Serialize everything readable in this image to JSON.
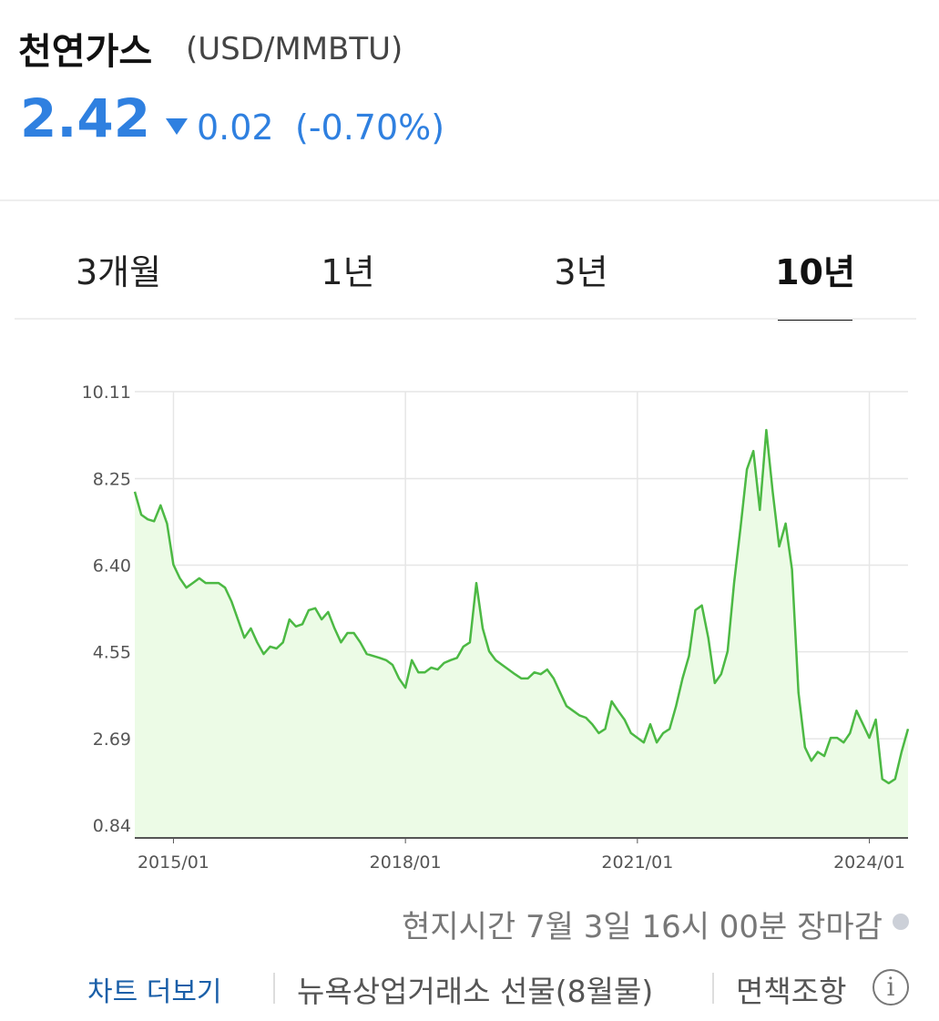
{
  "header": {
    "title": "천연가스",
    "unit": "(USD/MMBTU)",
    "price": "2.42",
    "change": "0.02",
    "change_pct": "(-0.70%)"
  },
  "tabs": {
    "items": [
      "3개월",
      "1년",
      "3년",
      "10년"
    ],
    "active": 3
  },
  "chart_data": {
    "type": "line",
    "x": [
      "2014/07",
      "2014/08",
      "2014/09",
      "2014/10",
      "2014/11",
      "2014/12",
      "2015/01",
      "2015/02",
      "2015/03",
      "2015/04",
      "2015/05",
      "2015/06",
      "2015/07",
      "2015/08",
      "2015/09",
      "2015/10",
      "2015/11",
      "2015/12",
      "2016/01",
      "2016/02",
      "2016/03",
      "2016/04",
      "2016/05",
      "2016/06",
      "2016/07",
      "2016/08",
      "2016/09",
      "2016/10",
      "2016/11",
      "2016/12",
      "2017/01",
      "2017/02",
      "2017/03",
      "2017/04",
      "2017/05",
      "2017/06",
      "2017/07",
      "2017/08",
      "2017/09",
      "2017/10",
      "2017/11",
      "2017/12",
      "2018/01",
      "2018/02",
      "2018/03",
      "2018/04",
      "2018/05",
      "2018/06",
      "2018/07",
      "2018/08",
      "2018/09",
      "2018/10",
      "2018/11",
      "2018/12",
      "2019/01",
      "2019/02",
      "2019/03",
      "2019/04",
      "2019/05",
      "2019/06",
      "2019/07",
      "2019/08",
      "2019/09",
      "2019/10",
      "2019/11",
      "2019/12",
      "2020/01",
      "2020/02",
      "2020/03",
      "2020/04",
      "2020/05",
      "2020/06",
      "2020/07",
      "2020/08",
      "2020/09",
      "2020/10",
      "2020/11",
      "2020/12",
      "2021/01",
      "2021/02",
      "2021/03",
      "2021/04",
      "2021/05",
      "2021/06",
      "2021/07",
      "2021/08",
      "2021/09",
      "2021/10",
      "2021/11",
      "2021/12",
      "2022/01",
      "2022/02",
      "2022/03",
      "2022/04",
      "2022/05",
      "2022/06",
      "2022/07",
      "2022/08",
      "2022/09",
      "2022/10",
      "2022/11",
      "2022/12",
      "2023/01",
      "2023/02",
      "2023/03",
      "2023/04",
      "2023/05",
      "2023/06",
      "2023/07",
      "2023/08",
      "2023/09",
      "2023/10",
      "2023/11",
      "2023/12",
      "2024/01",
      "2024/02",
      "2024/03",
      "2024/04",
      "2024/05",
      "2024/06",
      "2024/07"
    ],
    "series": [
      {
        "color": "#4cb944",
        "values": [
          7.97,
          7.48,
          7.38,
          7.34,
          7.68,
          7.29,
          6.41,
          6.12,
          5.92,
          6.02,
          6.12,
          6.02,
          6.02,
          6.02,
          5.92,
          5.63,
          5.24,
          4.85,
          5.05,
          4.75,
          4.5,
          4.66,
          4.62,
          4.75,
          5.24,
          5.09,
          5.14,
          5.44,
          5.48,
          5.24,
          5.4,
          5.05,
          4.75,
          4.95,
          4.95,
          4.75,
          4.5,
          4.46,
          4.42,
          4.37,
          4.27,
          3.98,
          3.78,
          4.37,
          4.11,
          4.11,
          4.21,
          4.17,
          4.31,
          4.37,
          4.42,
          4.66,
          4.75,
          6.02,
          5.05,
          4.56,
          4.37,
          4.27,
          4.17,
          4.07,
          3.98,
          3.98,
          4.11,
          4.07,
          4.17,
          3.98,
          3.68,
          3.39,
          3.29,
          3.19,
          3.14,
          3.0,
          2.81,
          2.9,
          3.49,
          3.29,
          3.1,
          2.81,
          2.71,
          2.61,
          3.0,
          2.61,
          2.81,
          2.9,
          3.39,
          3.98,
          4.46,
          5.44,
          5.54,
          4.85,
          3.88,
          4.07,
          4.56,
          6.02,
          7.19,
          8.45,
          8.84,
          7.58,
          9.29,
          7.97,
          6.8,
          7.29,
          6.31,
          3.68,
          2.51,
          2.22,
          2.41,
          2.32,
          2.71,
          2.71,
          2.61,
          2.81,
          3.29,
          3.0,
          2.71,
          3.1,
          1.83,
          1.74,
          1.83,
          2.41,
          2.9
        ]
      }
    ],
    "xlim": [
      "2014/07",
      "2024/07"
    ],
    "xticks": [
      "2015/01",
      "2018/01",
      "2021/01",
      "2024/01"
    ],
    "ylim": [
      0.57,
      10.11
    ],
    "yticks": [
      0.84,
      2.69,
      4.55,
      {
        "value": 6.4,
        "label": "6.40"
      },
      8.25,
      10.11
    ],
    "grid": true,
    "fill": "#ecfbe6"
  },
  "footer": {
    "timestamp": "현지시간 7월 3일 16시 00분 장마감",
    "more": "차트 더보기",
    "source": "뉴욕상업거래소 선물(8월물)",
    "disclaimer": "면책조항"
  }
}
